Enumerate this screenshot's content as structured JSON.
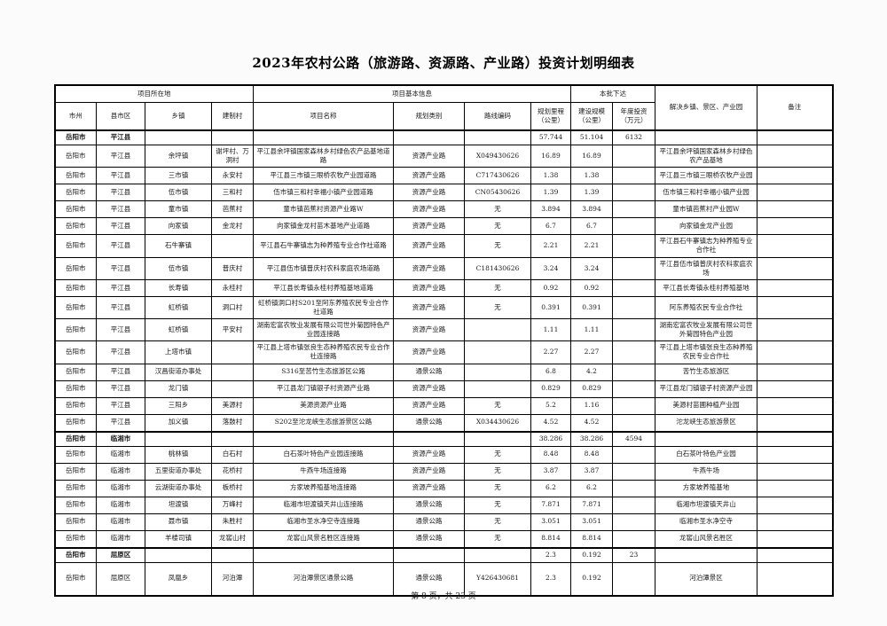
{
  "page": {
    "title": "2023年农村公路（旅游路、资源路、产业路）投资计划明细表",
    "footer": "第 8 页，共 23 页"
  },
  "table": {
    "groups": [
      {
        "label": "项目所在地"
      },
      {
        "label": "项目基本信息"
      },
      {
        "label": "本批下达"
      },
      {
        "label": "解决乡镇、景区、产业园"
      },
      {
        "label": "备注"
      }
    ],
    "columns": [
      "市州",
      "县市区",
      "乡镇",
      "建制村",
      "项目名称",
      "规划类别",
      "路线编码",
      "规划里程\n（公里）",
      "建设规模\n（公里）",
      "年度投资\n（万元）"
    ],
    "rows": [
      {
        "bold": true,
        "cells": [
          "岳阳市",
          "平江县",
          "",
          "",
          "",
          "",
          "",
          "57.744",
          "51.104",
          "6132",
          "",
          ""
        ]
      },
      {
        "bold": false,
        "cells": [
          "岳阳市",
          "平江县",
          "余坪镇",
          "谢坪村、万洞村",
          "平江县余坪镇国家森林乡村绿色农产品基地道路",
          "资源产业路",
          "X049430626",
          "16.89",
          "16.89",
          "",
          "平江县余坪镇国家森林乡村绿色农产品基地",
          ""
        ]
      },
      {
        "bold": false,
        "cells": [
          "岳阳市",
          "平江县",
          "三市镇",
          "永安村",
          "平江县三市镇三眼桥农牧产业园道路",
          "资源产业路",
          "C717430626",
          "1.38",
          "1.38",
          "",
          "平江县三市镇三眼桥农牧产业园",
          ""
        ]
      },
      {
        "bold": false,
        "cells": [
          "岳阳市",
          "平江县",
          "伍市镇",
          "三和村",
          "伍市镇三和村幸福小镇产业园道路",
          "资源产业路",
          "CN05430626",
          "1.39",
          "1.39",
          "",
          "伍市镇三和村幸福小镇产业园",
          ""
        ]
      },
      {
        "bold": false,
        "cells": [
          "岳阳市",
          "平江县",
          "童市镇",
          "芭蕉村",
          "童市镇芭蕉村资源产业路W",
          "资源产业路",
          "无",
          "3.894",
          "3.894",
          "",
          "童市镇芭蕉村产业园W",
          ""
        ]
      },
      {
        "bold": false,
        "cells": [
          "岳阳市",
          "平江县",
          "向家镇",
          "金龙村",
          "向家镇金龙村苗木基地产业道路",
          "资源产业路",
          "无",
          "6.7",
          "6.7",
          "",
          "向家镇金龙产业园",
          ""
        ]
      },
      {
        "bold": false,
        "cells": [
          "岳阳市",
          "平江县",
          "石牛寨镇",
          "",
          "平江县石牛寨镇志为种养殖专业合作社道路",
          "资源产业路",
          "无",
          "2.21",
          "2.21",
          "",
          "平江县石牛寨镇志为种养殖专业合作社",
          ""
        ]
      },
      {
        "bold": false,
        "cells": [
          "岳阳市",
          "平江县",
          "伍市镇",
          "普庆村",
          "平江县伍市镇普庆村农科家庭农场道路",
          "资源产业路",
          "C181430626",
          "3.24",
          "3.24",
          "",
          "平江县伍市镇普庆村农科家庭农场",
          ""
        ]
      },
      {
        "bold": false,
        "cells": [
          "岳阳市",
          "平江县",
          "长寿镇",
          "永桂村",
          "平江县长寿镇永桂村养殖基地道路",
          "资源产业路",
          "无",
          "0.92",
          "0.92",
          "",
          "平江县长寿镇永桂村养殖基地",
          ""
        ]
      },
      {
        "bold": false,
        "cells": [
          "岳阳市",
          "平江县",
          "虹桥镇",
          "洞口村",
          "虹桥镇洞口村S201至阿东养殖农民专业合作社道路",
          "资源产业路",
          "无",
          "0.391",
          "0.391",
          "",
          "阿东养殖农民专业合作社",
          ""
        ]
      },
      {
        "bold": false,
        "cells": [
          "岳阳市",
          "平江县",
          "虹桥镇",
          "平安村",
          "湖南宏富农牧业发展有限公司世外菊园特色产业园连接路",
          "资源产业路",
          "",
          "1.11",
          "1.11",
          "",
          "湖南宏富农牧业发展有限公司世外菊园特色产业园",
          ""
        ]
      },
      {
        "bold": false,
        "cells": [
          "岳阳市",
          "平江县",
          "上塔市镇",
          "",
          "平江县上塔市镇张良生态种养殖农民专业合作社连接路",
          "资源产业路",
          "",
          "2.27",
          "2.27",
          "",
          "平江县上塔市镇张良生态种养殖农民专业合作社",
          ""
        ]
      },
      {
        "bold": false,
        "cells": [
          "岳阳市",
          "平江县",
          "汉昌街道办事处",
          "",
          "S316至苦竹生态旅游区公路",
          "通景公路",
          "",
          "6.8",
          "4.2",
          "",
          "苦竹生态旅游区",
          ""
        ]
      },
      {
        "bold": false,
        "cells": [
          "岳阳市",
          "平江县",
          "龙门镇",
          "",
          "平江县龙门镇银子村资源产业路",
          "资源产业路",
          "",
          "0.829",
          "0.829",
          "",
          "平江县龙门镇银子村资源产业园",
          ""
        ]
      },
      {
        "bold": false,
        "cells": [
          "岳阳市",
          "平江县",
          "三阳乡",
          "美源村",
          "美源资源产业路",
          "资源产业路",
          "无",
          "5.2",
          "1.16",
          "",
          "美源村苗圃种植产业园",
          ""
        ]
      },
      {
        "bold": false,
        "cells": [
          "岳阳市",
          "平江县",
          "加义镇",
          "落鼓村",
          "S202至沱龙峡生态旅游景区公路",
          "通景公路",
          "X034430626",
          "4.52",
          "4.52",
          "",
          "沱龙峡生态旅游景区",
          ""
        ]
      },
      {
        "bold": true,
        "cells": [
          "岳阳市",
          "临湘市",
          "",
          "",
          "",
          "",
          "",
          "38.286",
          "38.286",
          "4594",
          "",
          ""
        ]
      },
      {
        "bold": false,
        "cells": [
          "岳阳市",
          "临湘市",
          "桃林镇",
          "白石村",
          "白石茶叶特色产业园连接路",
          "资源产业路",
          "无",
          "8.48",
          "8.48",
          "",
          "白石茶叶特色产业园",
          ""
        ]
      },
      {
        "bold": false,
        "cells": [
          "岳阳市",
          "临湘市",
          "五里街道办事处",
          "花桥村",
          "牛燕牛场连接路",
          "资源产业路",
          "无",
          "3.87",
          "3.87",
          "",
          "牛燕牛场",
          ""
        ]
      },
      {
        "bold": false,
        "cells": [
          "岳阳市",
          "临湘市",
          "云湖街道办事处",
          "板桥村",
          "方家坡养殖基地连接路",
          "资源产业路",
          "无",
          "6.2",
          "6.2",
          "",
          "方家坡养殖基地",
          ""
        ]
      },
      {
        "bold": false,
        "cells": [
          "岳阳市",
          "临湘市",
          "坦渡镇",
          "万峰村",
          "临湘市坦渡镇天井山连接路",
          "通景公路",
          "无",
          "7.871",
          "7.871",
          "",
          "临湘市坦渡镇天井山",
          ""
        ]
      },
      {
        "bold": false,
        "cells": [
          "岳阳市",
          "临湘市",
          "聂市镇",
          "朱胜村",
          "临湘市圣水净空寺连接路",
          "通景公路",
          "无",
          "3.051",
          "3.051",
          "",
          "临湘市圣水净空寺",
          ""
        ]
      },
      {
        "bold": false,
        "cells": [
          "岳阳市",
          "临湘市",
          "羊楼司镇",
          "龙窖山村",
          "龙窖山风景名胜区连接路",
          "通景公路",
          "无",
          "8.814",
          "8.814",
          "",
          "龙窖山风景名胜区",
          ""
        ]
      },
      {
        "bold": true,
        "cells": [
          "岳阳市",
          "屈原区",
          "",
          "",
          "",
          "",
          "",
          "2.3",
          "0.192",
          "23",
          "",
          ""
        ]
      },
      {
        "bold": false,
        "cells": [
          "岳阳市",
          "屈原区",
          "凤凰乡",
          "河泊潭",
          "河泊潭景区通景公路",
          "通景公路",
          "Y426430681",
          "2.3",
          "0.192",
          "",
          "河泊潭景区",
          ""
        ]
      }
    ]
  }
}
